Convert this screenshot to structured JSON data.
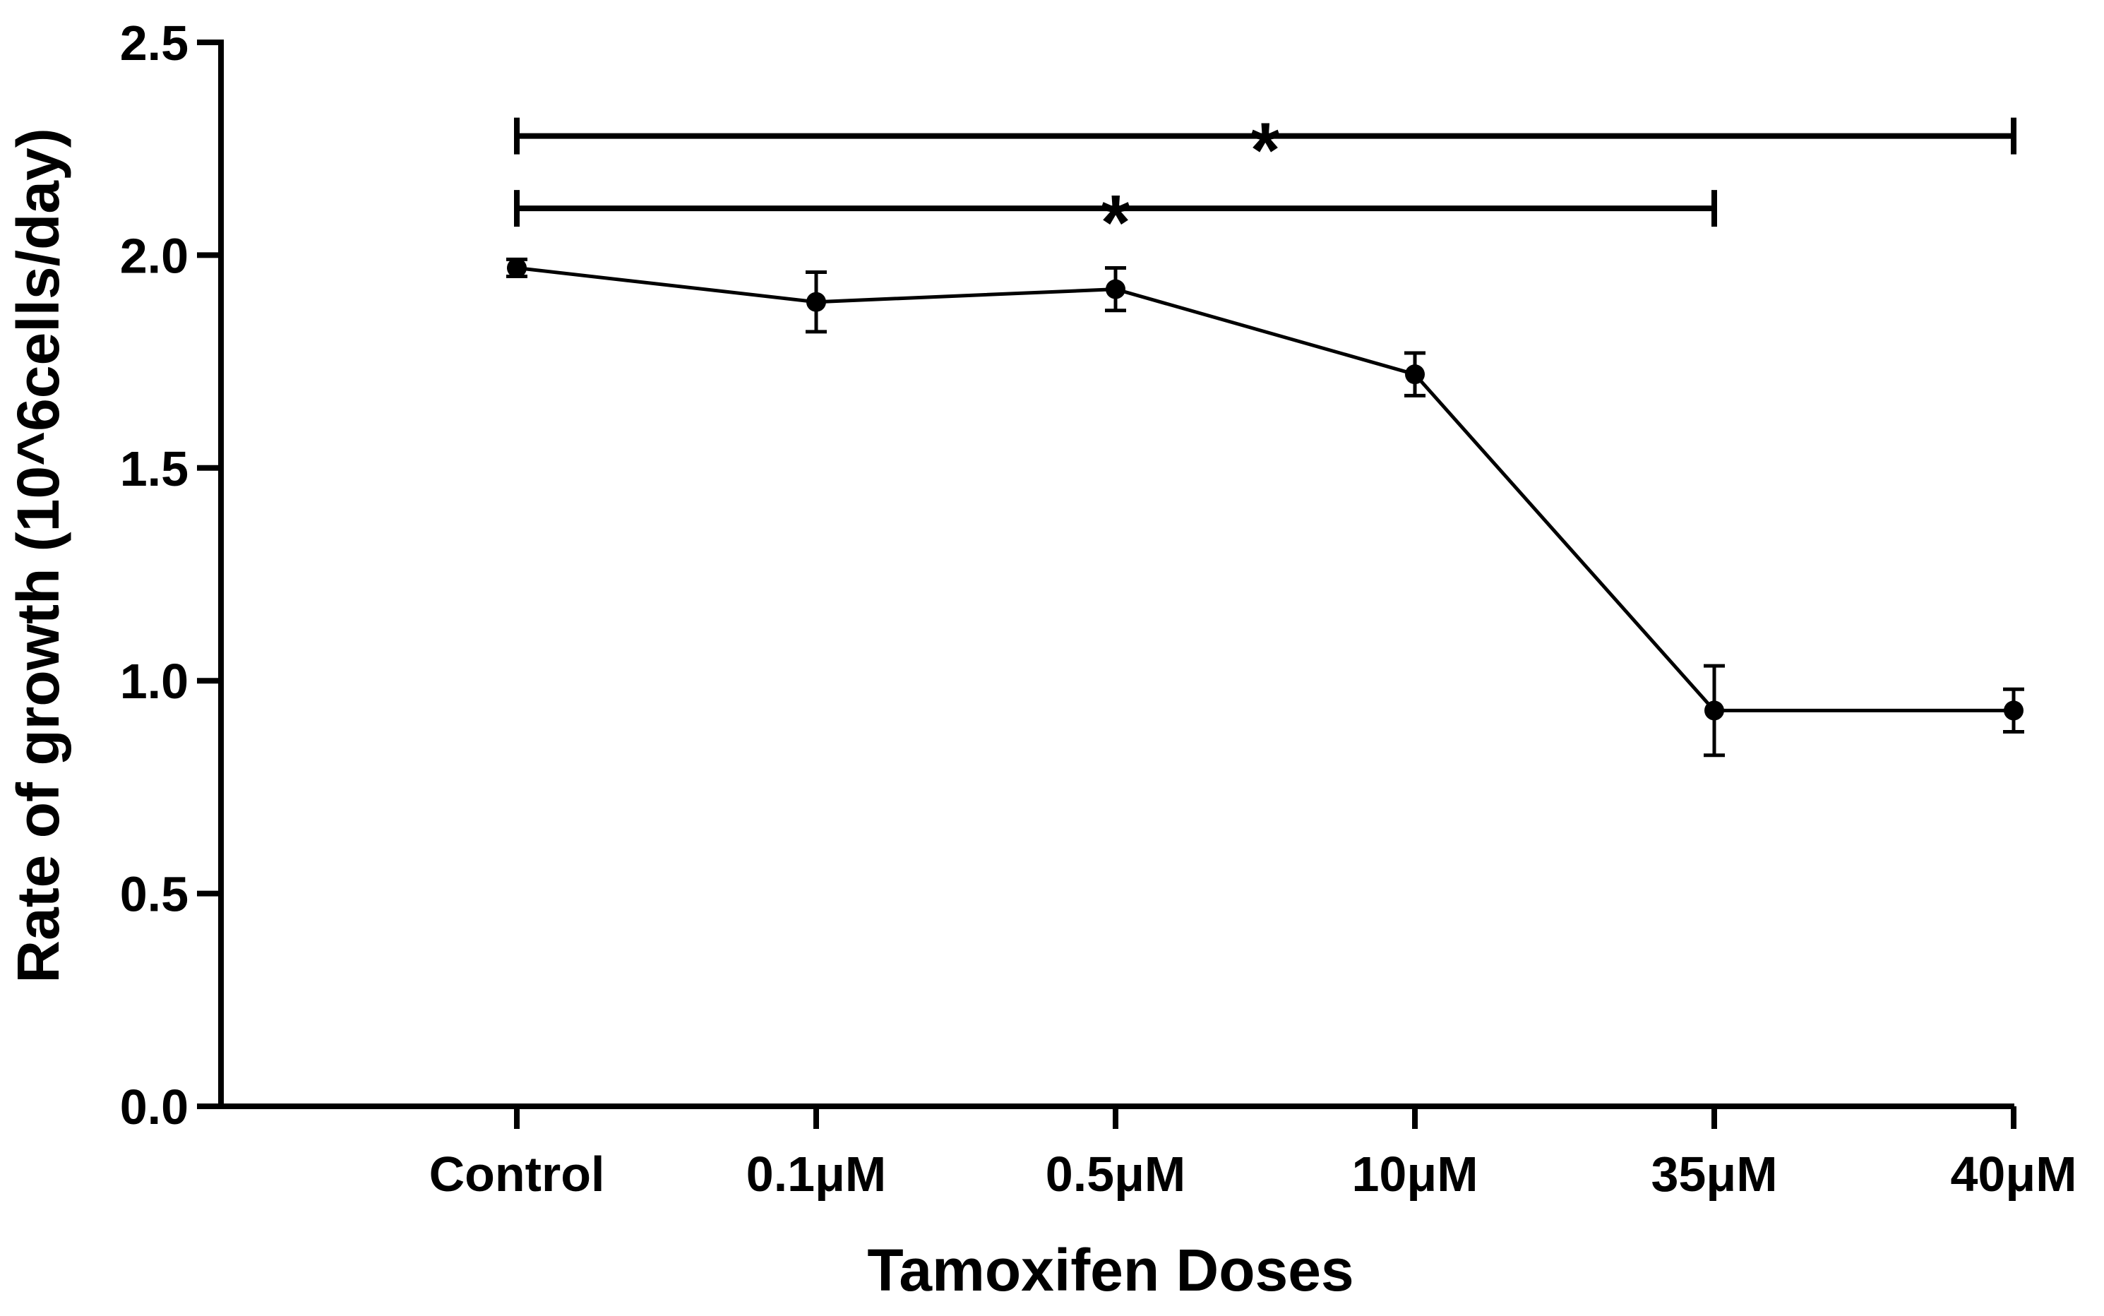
{
  "chart_data": {
    "type": "line",
    "title": "",
    "xlabel": "Tamoxifen Doses",
    "ylabel": "Rate of growth (10^6cells/day)",
    "categories": [
      "Control",
      "0.1μM",
      "0.5μM",
      "10μM",
      "35μM",
      "40μM"
    ],
    "series": [
      {
        "name": "Rate of growth",
        "values": [
          1.97,
          1.89,
          1.92,
          1.72,
          0.93,
          0.93
        ],
        "error": [
          0.02,
          0.07,
          0.05,
          0.05,
          0.105,
          0.05
        ]
      }
    ],
    "ylim": [
      0,
      2.5
    ],
    "yticks": [
      "0.0",
      "0.5",
      "1.0",
      "1.5",
      "2.0",
      "2.5"
    ],
    "yticks_values": [
      0,
      0.5,
      1.0,
      1.5,
      2.0,
      2.5
    ],
    "grid": false,
    "annotations": [
      {
        "type": "significance-bracket",
        "label": "*",
        "from_category": "Control",
        "to_category": "40μM",
        "y": 2.28
      },
      {
        "type": "significance-bracket",
        "label": "*",
        "from_category": "Control",
        "to_category": "35μM",
        "y": 2.11
      }
    ],
    "line_color": "#000000",
    "marker_color": "#000000"
  }
}
